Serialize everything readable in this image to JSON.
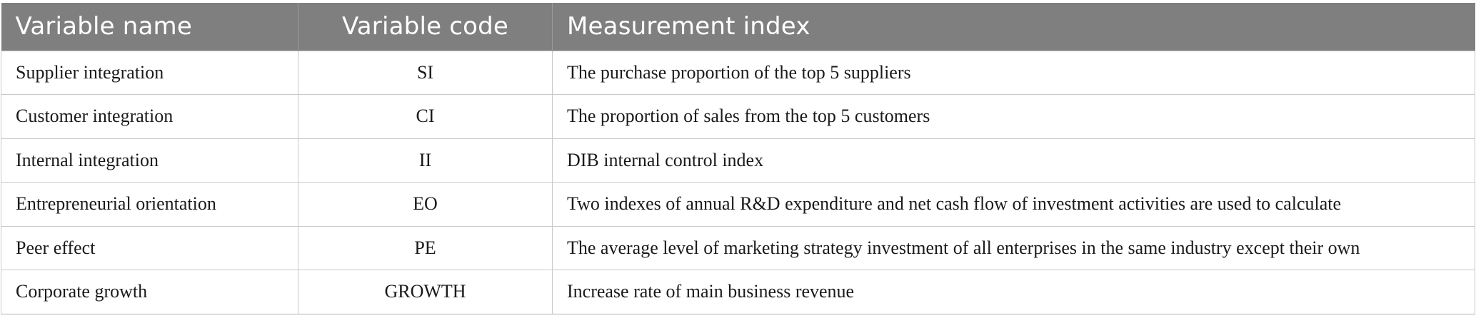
{
  "table": {
    "headers": [
      "Variable name",
      "Variable code",
      "Measurement index"
    ],
    "rows": [
      {
        "name": "Supplier integration",
        "code": "SI",
        "index": "The purchase proportion of the top 5 suppliers"
      },
      {
        "name": "Customer integration",
        "code": "CI",
        "index": "The proportion of sales from the top 5 customers"
      },
      {
        "name": "Internal integration",
        "code": "II",
        "index": "DIB internal control index"
      },
      {
        "name": "Entrepreneurial orientation",
        "code": "EO",
        "index": "Two indexes of annual R&D expenditure and net cash flow of investment activities are used to calculate"
      },
      {
        "name": "Peer effect",
        "code": "PE",
        "index": "The average level of marketing strategy investment of all enterprises in the same industry except their own"
      },
      {
        "name": "Corporate growth",
        "code": "GROWTH",
        "index": "Increase rate of main business revenue"
      }
    ]
  },
  "colors": {
    "header_bg": "#7e7f7e",
    "header_text": "#ffffff",
    "border": "#c9c9c9"
  }
}
